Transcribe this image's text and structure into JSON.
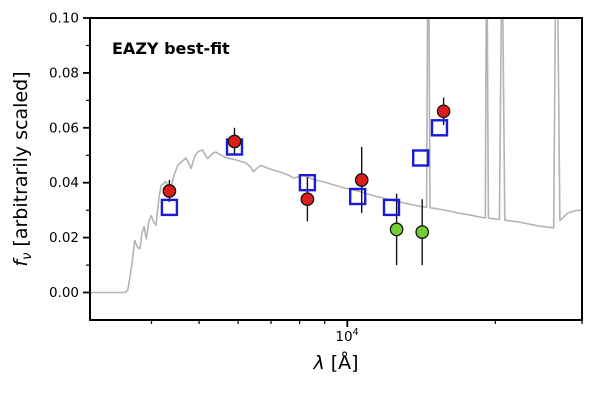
{
  "annotation": {
    "label": "EAZY best-fit",
    "color": "#ee1111"
  },
  "axes": {
    "xlabel_lambda": "λ",
    "xlabel_rest": " [Å]",
    "ylabel_f": "f",
    "ylabel_sub": "ν",
    "ylabel_rest": " [arbitrarily scaled]",
    "xtick_base": "10",
    "xtick_exp": "4"
  },
  "colors": {
    "spectrum": "#b3b3b3",
    "template": "#1a1ad9",
    "observed": "#dd1c1c",
    "observed_alt": "#6fce30",
    "errorbar": "#111111",
    "frame": "#000000"
  },
  "chart_data": {
    "type": "scatter",
    "title": "",
    "xlabel": "λ [Å]",
    "ylabel": "f_ν [arbitrarily scaled]",
    "x_scale": "log",
    "x_range_angstrom": [
      3000,
      30000
    ],
    "y_range": [
      -0.01,
      0.1
    ],
    "yticks": [
      0.0,
      0.02,
      0.04,
      0.06,
      0.08,
      0.1
    ],
    "ytick_labels": [
      "0.00",
      "0.02",
      "0.04",
      "0.06",
      "0.08",
      "0.10"
    ],
    "yticks_minor": [
      0.01,
      0.03,
      0.05,
      0.07,
      0.09
    ],
    "xticks_major": [
      10000
    ],
    "xticks_minor": [
      4000,
      5000,
      6000,
      7000,
      8000,
      9000,
      20000,
      30000
    ],
    "grid": false,
    "legend": false,
    "series": [
      {
        "name": "model-spectrum",
        "kind": "line",
        "color_key": "spectrum",
        "points": [
          [
            3000,
            0
          ],
          [
            3540,
            0
          ],
          [
            3580,
            0.001
          ],
          [
            3620,
            0.006
          ],
          [
            3660,
            0.012
          ],
          [
            3700,
            0.019
          ],
          [
            3745,
            0.0165
          ],
          [
            3790,
            0.016
          ],
          [
            3830,
            0.022
          ],
          [
            3865,
            0.024
          ],
          [
            3905,
            0.0195
          ],
          [
            3950,
            0.026
          ],
          [
            3995,
            0.028
          ],
          [
            4045,
            0.0255
          ],
          [
            4085,
            0.0245
          ],
          [
            4140,
            0.034
          ],
          [
            4185,
            0.039
          ],
          [
            4280,
            0.0405
          ],
          [
            4325,
            0.0385
          ],
          [
            4365,
            0.0372
          ],
          [
            4450,
            0.043
          ],
          [
            4530,
            0.0465
          ],
          [
            4700,
            0.049
          ],
          [
            4765,
            0.047
          ],
          [
            4815,
            0.0452
          ],
          [
            4900,
            0.0498
          ],
          [
            4975,
            0.0513
          ],
          [
            5080,
            0.052
          ],
          [
            5155,
            0.0498
          ],
          [
            5205,
            0.0488
          ],
          [
            5305,
            0.0505
          ],
          [
            5405,
            0.0512
          ],
          [
            5555,
            0.05
          ],
          [
            5655,
            0.0492
          ],
          [
            5805,
            0.0487
          ],
          [
            5935,
            0.0483
          ],
          [
            6105,
            0.0477
          ],
          [
            6225,
            0.0472
          ],
          [
            6355,
            0.0458
          ],
          [
            6445,
            0.044
          ],
          [
            6555,
            0.0453
          ],
          [
            6665,
            0.0463
          ],
          [
            6905,
            0.0453
          ],
          [
            7085,
            0.0446
          ],
          [
            7425,
            0.0435
          ],
          [
            7605,
            0.0427
          ],
          [
            7785,
            0.0417
          ],
          [
            8005,
            0.0423
          ],
          [
            8155,
            0.0428
          ],
          [
            8405,
            0.0417
          ],
          [
            8555,
            0.0411
          ],
          [
            8965,
            0.0403
          ],
          [
            9395,
            0.0392
          ],
          [
            9845,
            0.0381
          ],
          [
            10305,
            0.0374
          ],
          [
            10805,
            0.0363
          ],
          [
            11335,
            0.0352
          ],
          [
            11875,
            0.0344
          ],
          [
            12445,
            0.0334
          ],
          [
            13045,
            0.0326
          ],
          [
            13675,
            0.0318
          ],
          [
            14325,
            0.0312
          ],
          [
            14500,
            0.0311
          ],
          [
            14560,
            0.13
          ],
          [
            14660,
            0.13
          ],
          [
            14730,
            0.0309
          ],
          [
            15355,
            0.0304
          ],
          [
            16105,
            0.0297
          ],
          [
            16885,
            0.0289
          ],
          [
            17705,
            0.0283
          ],
          [
            18555,
            0.0275
          ],
          [
            19080,
            0.0272
          ],
          [
            19160,
            0.13
          ],
          [
            19260,
            0.13
          ],
          [
            19360,
            0.0271
          ],
          [
            20380,
            0.0266
          ],
          [
            20560,
            0.13
          ],
          [
            20720,
            0.13
          ],
          [
            20900,
            0.0264
          ],
          [
            22300,
            0.0257
          ],
          [
            23300,
            0.025
          ],
          [
            24400,
            0.0243
          ],
          [
            25600,
            0.0238
          ],
          [
            26280,
            0.0236
          ],
          [
            26480,
            0.13
          ],
          [
            26800,
            0.13
          ],
          [
            27050,
            0.0262
          ],
          [
            28100,
            0.029
          ],
          [
            29200,
            0.0299
          ],
          [
            30000,
            0.03
          ]
        ]
      },
      {
        "name": "template-photometry",
        "kind": "scatter",
        "marker": "open-square",
        "color_key": "template",
        "x": [
          4350,
          5900,
          8300,
          10500,
          12300,
          14100,
          15400
        ],
        "y": [
          0.031,
          0.053,
          0.04,
          0.035,
          0.031,
          0.049,
          0.06
        ]
      },
      {
        "name": "observed-photometry",
        "kind": "scatter",
        "marker": "filled-circle",
        "color_key": "observed",
        "x": [
          4350,
          5900,
          8300,
          10700,
          15700
        ],
        "y": [
          0.037,
          0.055,
          0.034,
          0.041,
          0.066
        ],
        "yerr": [
          0.004,
          0.005,
          0.008,
          0.012,
          0.005
        ]
      },
      {
        "name": "observed-photometry-green",
        "kind": "scatter",
        "marker": "filled-circle",
        "color_key": "observed_alt",
        "x": [
          12600,
          14200
        ],
        "y": [
          0.023,
          0.022
        ],
        "yerr": [
          0.013,
          0.012
        ]
      }
    ]
  }
}
